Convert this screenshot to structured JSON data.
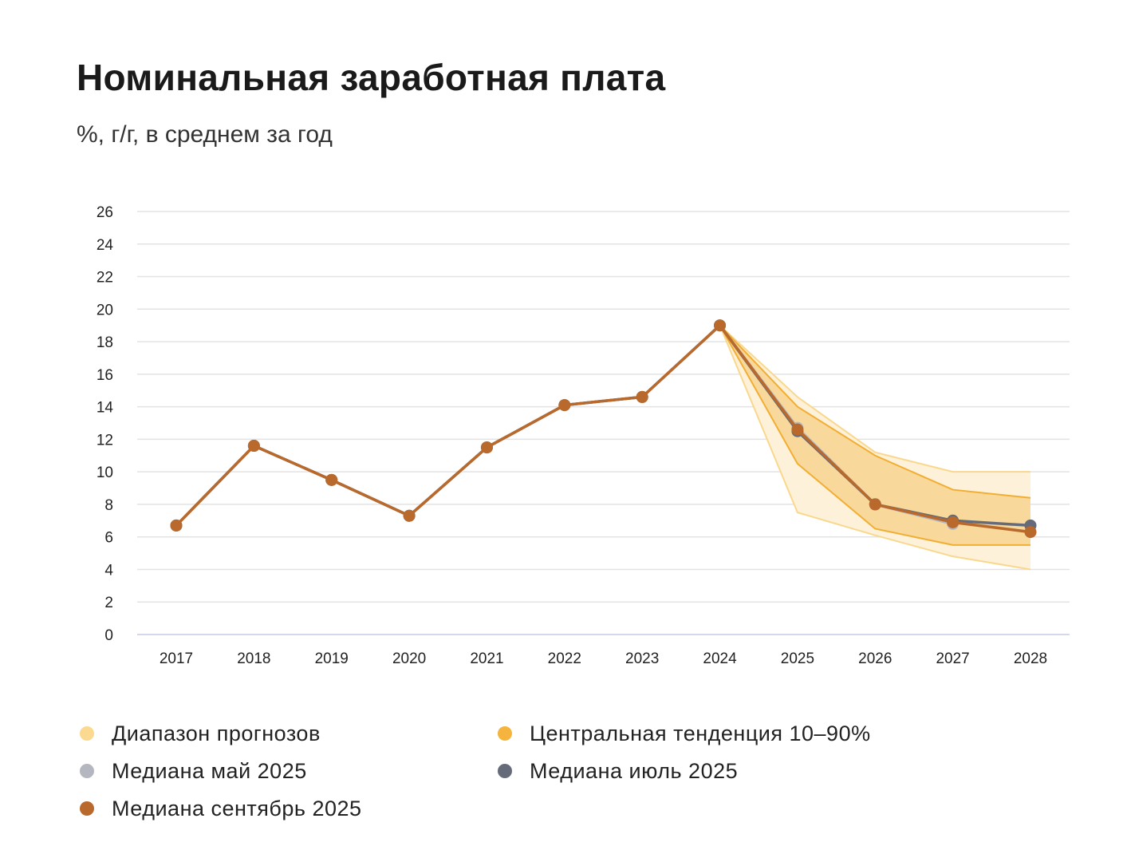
{
  "title": "Номинальная заработная плата",
  "subtitle": "%, г/г, в среднем за год",
  "chart_data": {
    "type": "line",
    "x": [
      "2017",
      "2018",
      "2019",
      "2020",
      "2021",
      "2022",
      "2023",
      "2024",
      "2025",
      "2026",
      "2027",
      "2028"
    ],
    "ylim": [
      0,
      26
    ],
    "yticks": [
      0,
      2,
      4,
      6,
      8,
      10,
      12,
      14,
      16,
      18,
      20,
      22,
      24,
      26
    ],
    "grid": true,
    "legend_position": "bottom",
    "bands": [
      {
        "name": "Диапазон прогнозов",
        "color": "#fbd990",
        "x": [
          "2024",
          "2025",
          "2026",
          "2027",
          "2028"
        ],
        "upper": [
          19.0,
          14.6,
          11.2,
          10.0,
          10.0
        ],
        "lower": [
          19.0,
          7.5,
          6.1,
          4.8,
          4.0
        ]
      },
      {
        "name": "Центральная тенденция 10–90%",
        "color": "#f4b43e",
        "x": [
          "2024",
          "2025",
          "2026",
          "2027",
          "2028"
        ],
        "upper": [
          19.0,
          14.0,
          11.0,
          8.9,
          8.4
        ],
        "lower": [
          19.0,
          10.5,
          6.5,
          5.5,
          5.5
        ]
      }
    ],
    "series": [
      {
        "name": "Медиана май 2025",
        "color": "#b4b7bf",
        "values": [
          6.7,
          11.6,
          9.5,
          7.3,
          11.5,
          14.1,
          14.6,
          19.0,
          12.7,
          8.0,
          6.8,
          null
        ]
      },
      {
        "name": "Медиана июль 2025",
        "color": "#656b78",
        "values": [
          6.7,
          11.6,
          9.5,
          7.3,
          11.5,
          14.1,
          14.6,
          19.0,
          12.5,
          8.0,
          7.0,
          6.7
        ]
      },
      {
        "name": "Медиана сентябрь 2025",
        "color": "#b8692b",
        "values": [
          6.7,
          11.6,
          9.5,
          7.3,
          11.5,
          14.1,
          14.6,
          19.0,
          12.6,
          8.0,
          6.9,
          6.3
        ]
      }
    ]
  }
}
